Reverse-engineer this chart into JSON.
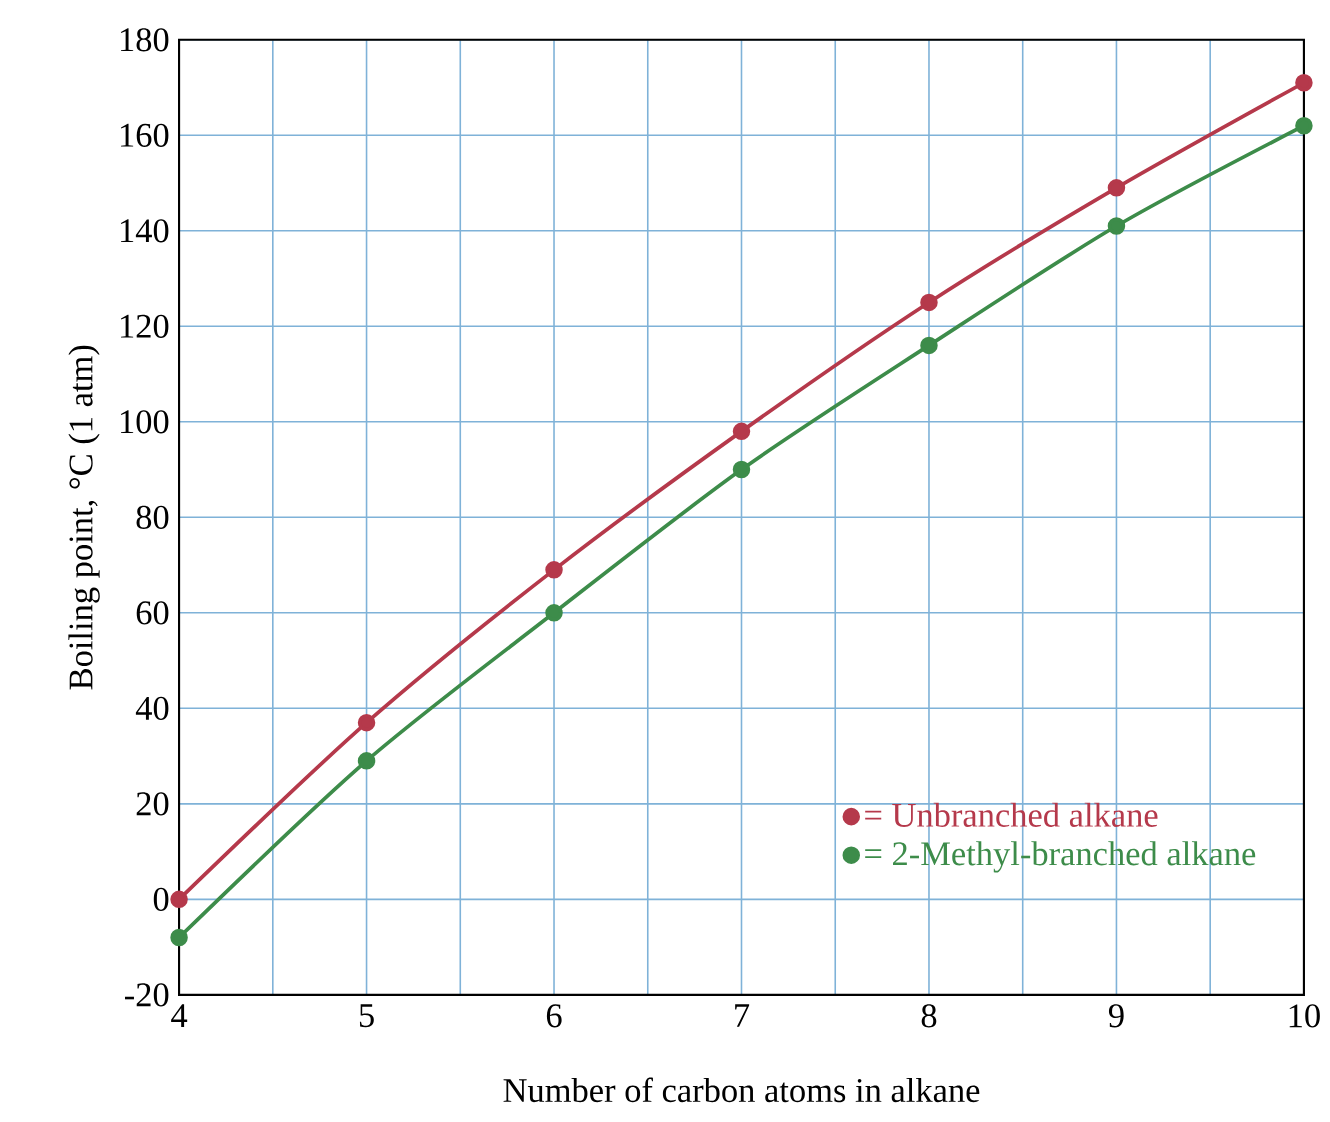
{
  "chart_data": {
    "type": "line",
    "xlabel": "Number of carbon atoms in alkane",
    "ylabel": "Boiling point, °C (1 atm)",
    "x": [
      4,
      5,
      6,
      7,
      8,
      9,
      10
    ],
    "series": [
      {
        "name": "= Unbranched alkane",
        "color": "#b5394b",
        "values": [
          0,
          37,
          69,
          98,
          125,
          149,
          171
        ]
      },
      {
        "name": "= 2-Methyl-branched alkane",
        "color": "#3d8c4a",
        "values": [
          -8,
          29,
          60,
          90,
          116,
          141,
          162
        ]
      }
    ],
    "xlim": [
      4,
      10
    ],
    "ylim": [
      -20,
      180
    ],
    "xticks": [
      4,
      {
        "value": 4.5,
        "label": null
      },
      5,
      {
        "value": 5.5,
        "label": null
      },
      6,
      {
        "value": 6.5,
        "label": null
      },
      7,
      {
        "value": 7.5,
        "label": null
      },
      8,
      {
        "value": 8.5,
        "label": null
      },
      9,
      {
        "value": 9.5,
        "label": null
      },
      10
    ],
    "yticks": [
      -20,
      0,
      20,
      40,
      60,
      80,
      100,
      120,
      140,
      160,
      180
    ],
    "grid": true,
    "legend": "bottom right",
    "marker": "circle",
    "line_style": "solid"
  }
}
